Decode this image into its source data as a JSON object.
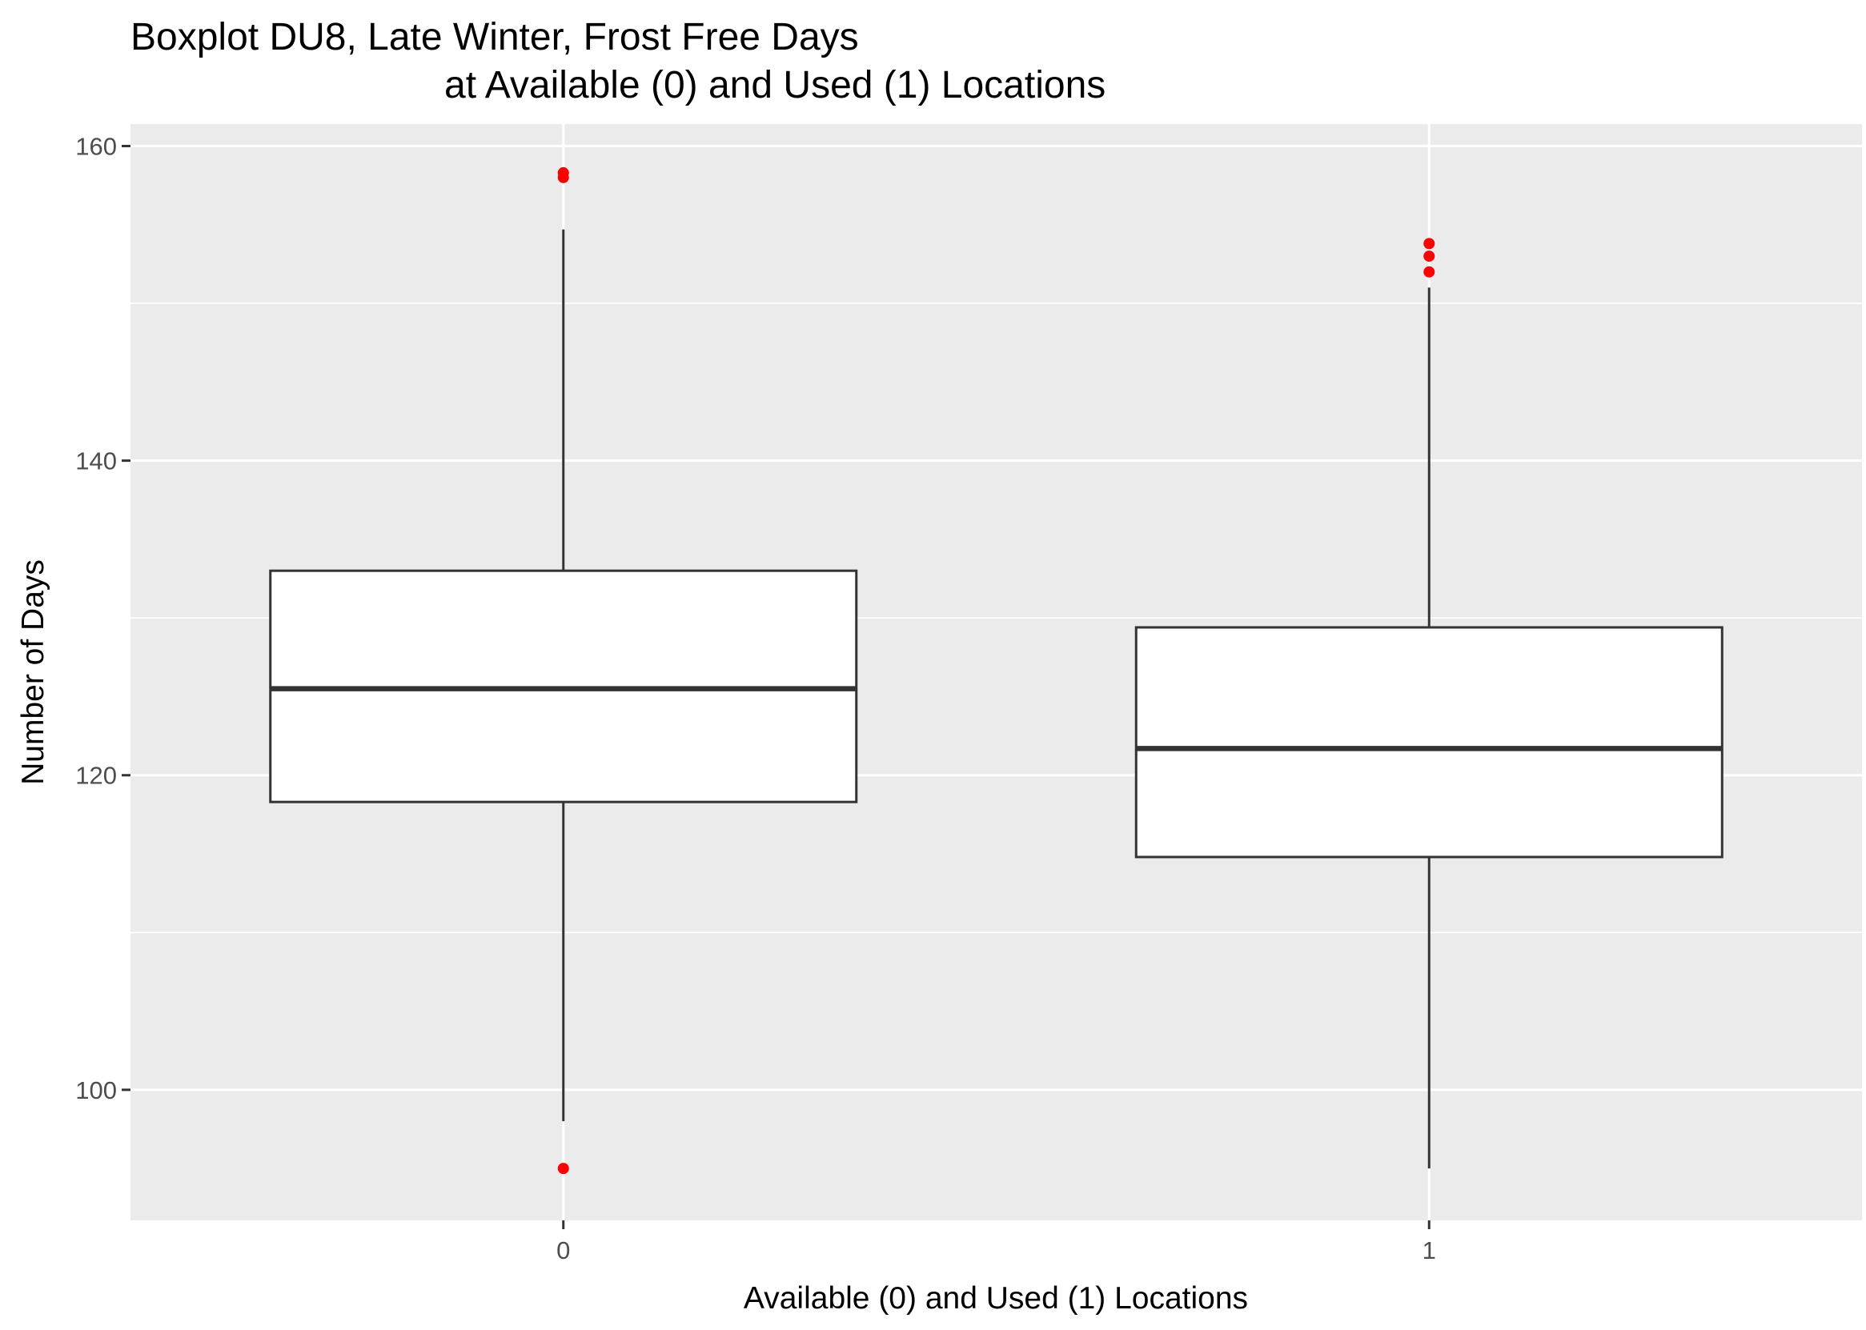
{
  "chart_data": {
    "type": "boxplot",
    "title_lines": [
      "Boxplot DU8, Late Winter, Frost Free Days",
      "at Available (0) and Used (1) Locations"
    ],
    "xlabel": "Available (0) and Used (1) Locations",
    "ylabel": "Number of Days",
    "categories": [
      "0",
      "1"
    ],
    "ylim": [
      91.7,
      161.4
    ],
    "yticks": [
      100,
      120,
      140,
      160
    ],
    "y_tick_labels": [
      "100",
      "120",
      "140",
      "160"
    ],
    "grid": true,
    "boxes": [
      {
        "category": "0",
        "whisker_low": 98.0,
        "q1": 118.3,
        "median": 125.5,
        "q3": 133.0,
        "whisker_high": 154.7,
        "outliers": [
          95.0,
          158.0,
          158.3
        ]
      },
      {
        "category": "1",
        "whisker_low": 95.0,
        "q1": 114.8,
        "median": 121.7,
        "q3": 129.4,
        "whisker_high": 151.0,
        "outliers": [
          152.0,
          153.0,
          153.8
        ]
      }
    ],
    "colors": {
      "panel_background": "#ebebeb",
      "gridline": "#ffffff",
      "box_fill": "#ffffff",
      "box_stroke": "#333333",
      "outlier": "#ff0000"
    }
  }
}
